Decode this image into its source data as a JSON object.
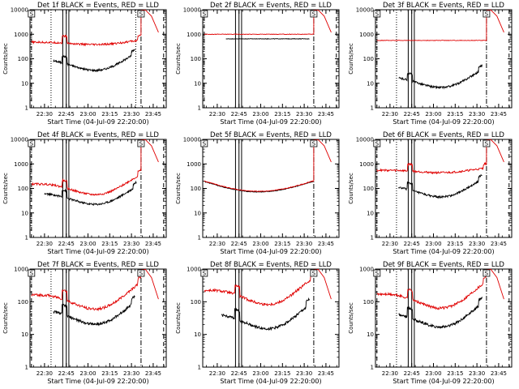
{
  "figure": {
    "window_title": "Fermi GBM detector count rates",
    "colors": {
      "events": "#000000",
      "lld": "#e00000",
      "axes": "#000000",
      "background": "#ffffff"
    }
  },
  "chart_data": [
    {
      "type": "line",
      "title": "Det 1f BLACK = Events, RED = LLD",
      "xlabel": "Start Time (04-Jul-09 22:20:00)",
      "ylabel": "Counts/sec",
      "yscale": "log",
      "ylim": [
        1,
        10000
      ],
      "ytick_labels": [
        "1",
        "10",
        "100",
        "1000",
        "10000"
      ],
      "xlim": [
        22.333,
        23.9
      ],
      "xtick_values": [
        22.5,
        22.75,
        23.0,
        23.25,
        23.5,
        23.75
      ],
      "xtick_labels": [
        "22:30",
        "22:45",
        "23:00",
        "23:15",
        "23:30",
        "23:45"
      ],
      "lines": {
        "dashed": [
          22.35,
          23.87
        ],
        "dotted": [
          22.575,
          23.55
        ],
        "solid": [
          22.71,
          22.75,
          22.78
        ],
        "dashdot": [
          23.61
        ]
      },
      "markers": {
        "box_left": "S",
        "box_right": "S"
      },
      "series": [
        {
          "name": "Events",
          "color": "#000000",
          "shape": "events",
          "t_start": 22.6,
          "t_end": 23.54,
          "level": 90
        },
        {
          "name": "LLD",
          "color": "#e00000",
          "shape": "events_flat",
          "t_start": 22.35,
          "t_end": 23.61,
          "level": 470,
          "rise": 10000
        }
      ]
    },
    {
      "type": "line",
      "title": "Det 2f BLACK = Events, RED = LLD",
      "xlabel": "Start Time (04-Jul-09 22:20:00)",
      "ylabel": "Counts/sec",
      "yscale": "log",
      "ylim": [
        1,
        10000
      ],
      "ytick_labels": [
        "1",
        "10",
        "100",
        "1000",
        "10000"
      ],
      "xlim": [
        22.333,
        23.9
      ],
      "xtick_values": [
        22.5,
        22.75,
        23.0,
        23.25,
        23.5,
        23.75
      ],
      "xtick_labels": [
        "22:30",
        "22:45",
        "23:00",
        "23:15",
        "23:30",
        "23:45"
      ],
      "lines": {
        "dashed": [
          22.35,
          23.87
        ],
        "dotted": [],
        "solid": [
          22.71,
          22.75,
          22.78
        ],
        "dashdot": [
          23.61
        ]
      },
      "markers": {
        "box_left": "S",
        "box_right": "S"
      },
      "series": [
        {
          "name": "Events",
          "color": "#000000",
          "shape": "flat",
          "t_start": 22.6,
          "t_end": 23.56,
          "level": 650
        },
        {
          "name": "LLD",
          "color": "#e00000",
          "shape": "flat",
          "t_start": 22.35,
          "t_end": 23.61,
          "level": 1000,
          "rise": 10000
        }
      ]
    },
    {
      "type": "line",
      "title": "Det 3f BLACK = Events, RED = LLD",
      "xlabel": "Start Time (04-Jul-09 22:20:00)",
      "ylabel": "Counts/sec",
      "yscale": "log",
      "ylim": [
        1,
        10000
      ],
      "ytick_labels": [
        "1",
        "10",
        "100",
        "1000",
        "10000"
      ],
      "xlim": [
        22.333,
        23.9
      ],
      "xtick_values": [
        22.5,
        22.75,
        23.0,
        23.25,
        23.5,
        23.75
      ],
      "xtick_labels": [
        "22:30",
        "22:45",
        "23:00",
        "23:15",
        "23:30",
        "23:45"
      ],
      "lines": {
        "dashed": [
          22.35,
          23.87
        ],
        "dotted": [
          22.575
        ],
        "solid": [
          22.71,
          22.75,
          22.78
        ],
        "dashdot": [
          23.61
        ]
      },
      "markers": {
        "box_left": "S",
        "box_right": "S"
      },
      "series": [
        {
          "name": "Events",
          "color": "#000000",
          "shape": "events",
          "t_start": 22.6,
          "t_end": 23.56,
          "level": 18
        },
        {
          "name": "LLD",
          "color": "#e00000",
          "shape": "flat",
          "t_start": 22.35,
          "t_end": 23.61,
          "level": 560,
          "rise": 10000
        }
      ]
    },
    {
      "type": "line",
      "title": "Det 4f BLACK = Events, RED = LLD",
      "xlabel": "Start Time (04-Jul-09 22:20:00)",
      "ylabel": "Counts/sec",
      "yscale": "log",
      "ylim": [
        1,
        10000
      ],
      "ytick_labels": [
        "1",
        "10",
        "100",
        "1000",
        "10000"
      ],
      "xlim": [
        22.333,
        23.9
      ],
      "xtick_values": [
        22.5,
        22.75,
        23.0,
        23.25,
        23.5,
        23.75
      ],
      "xtick_labels": [
        "22:30",
        "22:45",
        "23:00",
        "23:15",
        "23:30",
        "23:45"
      ],
      "lines": {
        "dashed": [
          22.35,
          23.87
        ],
        "dotted": [],
        "solid": [
          22.71,
          22.75,
          22.78
        ],
        "dashdot": [
          23.61
        ]
      },
      "markers": {
        "box_left": "S",
        "box_right": "S"
      },
      "series": [
        {
          "name": "Events",
          "color": "#000000",
          "shape": "events",
          "t_start": 22.5,
          "t_end": 23.56,
          "level": 60
        },
        {
          "name": "LLD",
          "color": "#e00000",
          "shape": "events",
          "t_start": 22.35,
          "t_end": 23.61,
          "level": 150,
          "rise": 10000
        }
      ]
    },
    {
      "type": "line",
      "title": "Det 5f BLACK = Events, RED = LLD",
      "xlabel": "Start Time (04-Jul-09 22:20:00)",
      "ylabel": "Counts/sec",
      "yscale": "log",
      "ylim": [
        1,
        10000
      ],
      "ytick_labels": [
        "1",
        "10",
        "100",
        "1000",
        "10000"
      ],
      "xlim": [
        22.333,
        23.9
      ],
      "xtick_values": [
        22.5,
        22.75,
        23.0,
        23.25,
        23.5,
        23.75
      ],
      "xtick_labels": [
        "22:30",
        "22:45",
        "23:00",
        "23:15",
        "23:30",
        "23:45"
      ],
      "lines": {
        "dashed": [],
        "dotted": [],
        "solid": [
          22.71,
          22.75,
          22.78
        ],
        "dashdot": [
          23.61
        ]
      },
      "markers": {
        "box_left": "S",
        "box_right": "S"
      },
      "series": [
        {
          "name": "Events",
          "color": "#000000",
          "shape": "dip",
          "t_start": 22.35,
          "t_end": 23.6,
          "level": 190
        },
        {
          "name": "LLD",
          "color": "#e00000",
          "shape": "dip",
          "t_start": 22.35,
          "t_end": 23.61,
          "level": 200,
          "rise": 10000
        }
      ]
    },
    {
      "type": "line",
      "title": "Det 6f BLACK = Events, RED = LLD",
      "xlabel": "Start Time (04-Jul-09 22:20:00)",
      "ylabel": "Counts/sec",
      "yscale": "log",
      "ylim": [
        1,
        10000
      ],
      "ytick_labels": [
        "1",
        "10",
        "100",
        "1000",
        "10000"
      ],
      "xlim": [
        22.333,
        23.9
      ],
      "xtick_values": [
        22.5,
        22.75,
        23.0,
        23.25,
        23.5,
        23.75
      ],
      "xtick_labels": [
        "22:30",
        "22:45",
        "23:00",
        "23:15",
        "23:30",
        "23:45"
      ],
      "lines": {
        "dashed": [
          22.35,
          23.87
        ],
        "dotted": [
          22.575
        ],
        "solid": [
          22.71,
          22.75,
          22.78
        ],
        "dashdot": [
          23.61
        ]
      },
      "markers": {
        "box_left": "S",
        "box_right": "S"
      },
      "series": [
        {
          "name": "Events",
          "color": "#000000",
          "shape": "events",
          "t_start": 22.6,
          "t_end": 23.56,
          "level": 120
        },
        {
          "name": "LLD",
          "color": "#e00000",
          "shape": "events_flat",
          "t_start": 22.35,
          "t_end": 23.61,
          "level": 550,
          "rise": 10000
        }
      ]
    },
    {
      "type": "line",
      "title": "Det 7f BLACK = Events, RED = LLD",
      "xlabel": "Start Time (04-Jul-09 22:20:00)",
      "ylabel": "Counts/sec",
      "yscale": "log",
      "ylim": [
        1,
        1000
      ],
      "ytick_labels": [
        "1",
        "10",
        "100",
        "1000"
      ],
      "xlim": [
        22.333,
        23.9
      ],
      "xtick_values": [
        22.5,
        22.75,
        23.0,
        23.25,
        23.5,
        23.75
      ],
      "xtick_labels": [
        "22:30",
        "22:45",
        "23:00",
        "23:15",
        "23:30",
        "23:45"
      ],
      "lines": {
        "dashed": [
          22.35,
          23.87
        ],
        "dotted": [
          22.575
        ],
        "solid": [
          22.71,
          22.75,
          22.78
        ],
        "dashdot": [
          23.61
        ]
      },
      "markers": {
        "box_left": "S",
        "box_right": "S"
      },
      "series": [
        {
          "name": "Events",
          "color": "#000000",
          "shape": "events",
          "t_start": 22.6,
          "t_end": 23.54,
          "level": 55
        },
        {
          "name": "LLD",
          "color": "#e00000",
          "shape": "events",
          "t_start": 22.35,
          "t_end": 23.61,
          "level": 160,
          "rise": 1000
        }
      ]
    },
    {
      "type": "line",
      "title": "Det 8f BLACK = Events, RED = LLD",
      "xlabel": "Start Time (04-Jul-09 22:20:00)",
      "ylabel": "Counts/sec",
      "yscale": "log",
      "ylim": [
        1,
        1000
      ],
      "ytick_labels": [
        "1",
        "10",
        "100",
        "1000"
      ],
      "xlim": [
        22.333,
        23.9
      ],
      "xtick_values": [
        22.5,
        22.75,
        23.0,
        23.25,
        23.5,
        23.75
      ],
      "xtick_labels": [
        "22:30",
        "22:45",
        "23:00",
        "23:15",
        "23:30",
        "23:45"
      ],
      "lines": {
        "dashed": [],
        "dotted": [],
        "solid": [
          22.71,
          22.75,
          22.78
        ],
        "dashdot": [
          23.61
        ]
      },
      "markers": {
        "box_left": "S",
        "box_right": "S"
      },
      "series": [
        {
          "name": "Events",
          "color": "#000000",
          "shape": "events",
          "t_start": 22.55,
          "t_end": 23.56,
          "level": 40
        },
        {
          "name": "LLD",
          "color": "#e00000",
          "shape": "events",
          "t_start": 22.35,
          "t_end": 23.61,
          "level": 220,
          "rise": 1000
        }
      ]
    },
    {
      "type": "line",
      "title": "Det 9f BLACK = Events, RED = LLD",
      "xlabel": "Start Time (04-Jul-09 22:20:00)",
      "ylabel": "Counts/sec",
      "yscale": "log",
      "ylim": [
        1,
        1000
      ],
      "ytick_labels": [
        "1",
        "10",
        "100",
        "1000"
      ],
      "xlim": [
        22.333,
        23.9
      ],
      "xtick_values": [
        22.5,
        22.75,
        23.0,
        23.25,
        23.5,
        23.75
      ],
      "xtick_labels": [
        "22:30",
        "22:45",
        "23:00",
        "23:15",
        "23:30",
        "23:45"
      ],
      "lines": {
        "dashed": [
          22.35,
          23.87
        ],
        "dotted": [
          22.575
        ],
        "solid": [
          22.71,
          22.75,
          22.78
        ],
        "dashdot": [
          23.61
        ]
      },
      "markers": {
        "box_left": "S",
        "box_right": "S"
      },
      "series": [
        {
          "name": "Events",
          "color": "#000000",
          "shape": "events",
          "t_start": 22.6,
          "t_end": 23.56,
          "level": 45
        },
        {
          "name": "LLD",
          "color": "#e00000",
          "shape": "events",
          "t_start": 22.35,
          "t_end": 23.61,
          "level": 170,
          "rise": 1000
        }
      ]
    }
  ]
}
